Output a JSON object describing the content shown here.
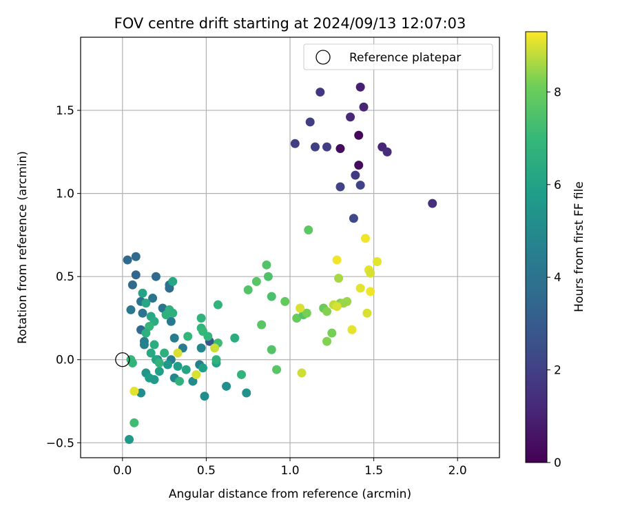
{
  "chart_data": {
    "type": "scatter",
    "title": "FOV centre drift starting at 2024/09/13 12:07:03",
    "xlabel": "Angular distance from reference (arcmin)",
    "ylabel": "Rotation from reference (arcmin)",
    "xlim": [
      -0.25,
      2.25
    ],
    "ylim": [
      -0.59,
      1.94
    ],
    "xticks": [
      0.0,
      0.5,
      1.0,
      1.5,
      2.0
    ],
    "xtick_labels": [
      "0.0",
      "0.5",
      "1.0",
      "1.5",
      "2.0"
    ],
    "yticks": [
      -0.5,
      0.0,
      0.5,
      1.0,
      1.5
    ],
    "ytick_labels": [
      "−0.5",
      "0.0",
      "0.5",
      "1.0",
      "1.5"
    ],
    "grid": true,
    "legend": {
      "placement": "top-right",
      "entries": [
        "Reference platepar"
      ]
    },
    "reference_point": {
      "x": 0.0,
      "y": 0.0
    },
    "colorbar": {
      "label": "Hours from first FF file",
      "colormap": "viridis",
      "range": [
        0,
        9.3
      ],
      "ticks": [
        0,
        2,
        4,
        6,
        8
      ],
      "tick_labels": [
        "0",
        "2",
        "4",
        "6",
        "8"
      ]
    },
    "series": [
      {
        "points": [
          {
            "x": 1.41,
            "y": 1.35,
            "c": 0.2
          },
          {
            "x": 1.3,
            "y": 1.27,
            "c": 0.3
          },
          {
            "x": 1.41,
            "y": 1.17,
            "c": 0.3
          },
          {
            "x": 1.42,
            "y": 1.64,
            "c": 0.9
          },
          {
            "x": 1.44,
            "y": 1.52,
            "c": 1.1
          },
          {
            "x": 1.36,
            "y": 1.46,
            "c": 1.2
          },
          {
            "x": 1.55,
            "y": 1.28,
            "c": 1.1
          },
          {
            "x": 1.58,
            "y": 1.25,
            "c": 1.3
          },
          {
            "x": 1.85,
            "y": 0.94,
            "c": 1.4
          },
          {
            "x": 1.18,
            "y": 1.61,
            "c": 1.7
          },
          {
            "x": 1.12,
            "y": 1.43,
            "c": 1.9
          },
          {
            "x": 1.03,
            "y": 1.3,
            "c": 1.9
          },
          {
            "x": 1.15,
            "y": 1.28,
            "c": 2.0
          },
          {
            "x": 1.22,
            "y": 1.28,
            "c": 1.9
          },
          {
            "x": 1.39,
            "y": 1.11,
            "c": 1.8
          },
          {
            "x": 1.3,
            "y": 1.04,
            "c": 2.1
          },
          {
            "x": 1.42,
            "y": 1.05,
            "c": 2.1
          },
          {
            "x": 1.38,
            "y": 0.85,
            "c": 2.3
          },
          {
            "x": 0.52,
            "y": 0.11,
            "c": 2.8
          },
          {
            "x": 0.03,
            "y": 0.6,
            "c": 3.6
          },
          {
            "x": 0.08,
            "y": 0.62,
            "c": 3.6
          },
          {
            "x": 0.08,
            "y": 0.51,
            "c": 3.4
          },
          {
            "x": 0.06,
            "y": 0.45,
            "c": 3.5
          },
          {
            "x": 0.2,
            "y": 0.5,
            "c": 3.6
          },
          {
            "x": 0.28,
            "y": 0.43,
            "c": 3.7
          },
          {
            "x": 0.28,
            "y": 0.45,
            "c": 3.9
          },
          {
            "x": 0.11,
            "y": 0.35,
            "c": 4.0
          },
          {
            "x": 0.18,
            "y": 0.37,
            "c": 4.0
          },
          {
            "x": 0.24,
            "y": 0.31,
            "c": 4.1
          },
          {
            "x": 0.26,
            "y": 0.29,
            "c": 3.9
          },
          {
            "x": 0.12,
            "y": 0.28,
            "c": 4.1
          },
          {
            "x": 0.05,
            "y": 0.3,
            "c": 4.2
          },
          {
            "x": 0.29,
            "y": 0.23,
            "c": 4.2
          },
          {
            "x": 0.11,
            "y": 0.18,
            "c": 3.6
          },
          {
            "x": 0.31,
            "y": 0.13,
            "c": 4.4
          },
          {
            "x": 0.13,
            "y": 0.11,
            "c": 4.4
          },
          {
            "x": 0.36,
            "y": 0.07,
            "c": 4.4
          },
          {
            "x": 0.13,
            "y": 0.09,
            "c": 4.6
          },
          {
            "x": 0.47,
            "y": 0.07,
            "c": 4.8
          },
          {
            "x": 0.29,
            "y": 0.0,
            "c": 4.4
          },
          {
            "x": 0.46,
            "y": -0.03,
            "c": 4.5
          },
          {
            "x": 0.21,
            "y": 0.0,
            "c": 5.0
          },
          {
            "x": 0.11,
            "y": -0.2,
            "c": 5.1
          },
          {
            "x": 0.04,
            "y": -0.48,
            "c": 5.6
          },
          {
            "x": 0.31,
            "y": -0.11,
            "c": 4.8
          },
          {
            "x": 0.42,
            "y": -0.13,
            "c": 5.0
          },
          {
            "x": 0.49,
            "y": -0.22,
            "c": 5.1
          },
          {
            "x": 0.62,
            "y": -0.16,
            "c": 5.2
          },
          {
            "x": 0.74,
            "y": -0.2,
            "c": 5.3
          },
          {
            "x": 0.14,
            "y": -0.08,
            "c": 5.5
          },
          {
            "x": 0.16,
            "y": -0.11,
            "c": 5.8
          },
          {
            "x": 0.19,
            "y": -0.12,
            "c": 5.7
          },
          {
            "x": 0.22,
            "y": -0.07,
            "c": 5.9
          },
          {
            "x": 0.27,
            "y": -0.03,
            "c": 5.6
          },
          {
            "x": 0.33,
            "y": -0.04,
            "c": 5.8
          },
          {
            "x": 0.38,
            "y": -0.06,
            "c": 6.1
          },
          {
            "x": 0.48,
            "y": -0.05,
            "c": 5.9
          },
          {
            "x": 0.56,
            "y": -0.02,
            "c": 6.0
          },
          {
            "x": 0.12,
            "y": 0.4,
            "c": 6.1
          },
          {
            "x": 0.14,
            "y": 0.34,
            "c": 6.2
          },
          {
            "x": 0.17,
            "y": 0.26,
            "c": 6.3
          },
          {
            "x": 0.19,
            "y": 0.23,
            "c": 6.4
          },
          {
            "x": 0.26,
            "y": 0.27,
            "c": 6.6
          },
          {
            "x": 0.28,
            "y": 0.3,
            "c": 6.7
          },
          {
            "x": 0.3,
            "y": 0.28,
            "c": 6.6
          },
          {
            "x": 0.3,
            "y": 0.47,
            "c": 6.2
          },
          {
            "x": 0.16,
            "y": 0.2,
            "c": 6.9
          },
          {
            "x": 0.14,
            "y": 0.16,
            "c": 6.6
          },
          {
            "x": 0.17,
            "y": 0.04,
            "c": 6.3
          },
          {
            "x": 0.19,
            "y": 0.09,
            "c": 6.5
          },
          {
            "x": 0.25,
            "y": 0.04,
            "c": 6.6
          },
          {
            "x": 0.2,
            "y": 0.0,
            "c": 6.2
          },
          {
            "x": 0.22,
            "y": -0.02,
            "c": 6.8
          },
          {
            "x": 0.34,
            "y": -0.13,
            "c": 6.7
          },
          {
            "x": 0.39,
            "y": 0.14,
            "c": 6.9
          },
          {
            "x": 0.47,
            "y": 0.25,
            "c": 6.8
          },
          {
            "x": 0.47,
            "y": 0.19,
            "c": 6.8
          },
          {
            "x": 0.48,
            "y": 0.17,
            "c": 7.0
          },
          {
            "x": 0.51,
            "y": 0.14,
            "c": 6.9
          },
          {
            "x": 0.57,
            "y": 0.33,
            "c": 6.8
          },
          {
            "x": 0.56,
            "y": 0.0,
            "c": 6.7
          },
          {
            "x": 0.57,
            "y": 0.1,
            "c": 7.2
          },
          {
            "x": 0.67,
            "y": 0.13,
            "c": 6.5
          },
          {
            "x": 0.71,
            "y": -0.09,
            "c": 6.8
          },
          {
            "x": 0.05,
            "y": 0.0,
            "c": 6.9
          },
          {
            "x": 0.06,
            "y": -0.02,
            "c": 6.8
          },
          {
            "x": 0.07,
            "y": -0.38,
            "c": 7.2
          },
          {
            "x": 0.75,
            "y": 0.42,
            "c": 7.6
          },
          {
            "x": 0.8,
            "y": 0.47,
            "c": 7.7
          },
          {
            "x": 0.86,
            "y": 0.57,
            "c": 7.6
          },
          {
            "x": 0.87,
            "y": 0.5,
            "c": 7.5
          },
          {
            "x": 0.89,
            "y": 0.38,
            "c": 7.4
          },
          {
            "x": 0.83,
            "y": 0.21,
            "c": 7.7
          },
          {
            "x": 0.89,
            "y": 0.06,
            "c": 7.6
          },
          {
            "x": 0.92,
            "y": -0.06,
            "c": 7.7
          },
          {
            "x": 0.97,
            "y": 0.35,
            "c": 7.9
          },
          {
            "x": 1.04,
            "y": 0.25,
            "c": 8.0
          },
          {
            "x": 1.08,
            "y": 0.27,
            "c": 7.6
          },
          {
            "x": 1.1,
            "y": 0.28,
            "c": 8.2
          },
          {
            "x": 1.11,
            "y": 0.78,
            "c": 7.8
          },
          {
            "x": 1.2,
            "y": 0.31,
            "c": 8.0
          },
          {
            "x": 1.22,
            "y": 0.29,
            "c": 8.3
          },
          {
            "x": 1.22,
            "y": 0.11,
            "c": 8.3
          },
          {
            "x": 1.25,
            "y": 0.16,
            "c": 8.2
          },
          {
            "x": 1.29,
            "y": 0.49,
            "c": 8.6
          },
          {
            "x": 1.3,
            "y": 0.34,
            "c": 8.3
          },
          {
            "x": 1.32,
            "y": 0.34,
            "c": 8.5
          },
          {
            "x": 1.34,
            "y": 0.35,
            "c": 8.5
          },
          {
            "x": 0.55,
            "y": 0.07,
            "c": 8.9
          },
          {
            "x": 0.33,
            "y": 0.04,
            "c": 9.0
          },
          {
            "x": 0.44,
            "y": -0.09,
            "c": 9.0
          },
          {
            "x": 0.07,
            "y": -0.19,
            "c": 9.1
          },
          {
            "x": 1.06,
            "y": 0.31,
            "c": 9.0
          },
          {
            "x": 1.07,
            "y": -0.08,
            "c": 8.9
          },
          {
            "x": 1.26,
            "y": 0.33,
            "c": 8.8
          },
          {
            "x": 1.28,
            "y": 0.32,
            "c": 9.0
          },
          {
            "x": 1.28,
            "y": 0.6,
            "c": 9.2
          },
          {
            "x": 1.37,
            "y": 0.18,
            "c": 9.1
          },
          {
            "x": 1.42,
            "y": 0.43,
            "c": 9.1
          },
          {
            "x": 1.45,
            "y": 0.73,
            "c": 9.2
          },
          {
            "x": 1.46,
            "y": 0.28,
            "c": 9.0
          },
          {
            "x": 1.47,
            "y": 0.54,
            "c": 9.1
          },
          {
            "x": 1.48,
            "y": 0.52,
            "c": 9.0
          },
          {
            "x": 1.48,
            "y": 0.41,
            "c": 9.2
          },
          {
            "x": 1.52,
            "y": 0.59,
            "c": 9.1
          }
        ]
      }
    ]
  }
}
